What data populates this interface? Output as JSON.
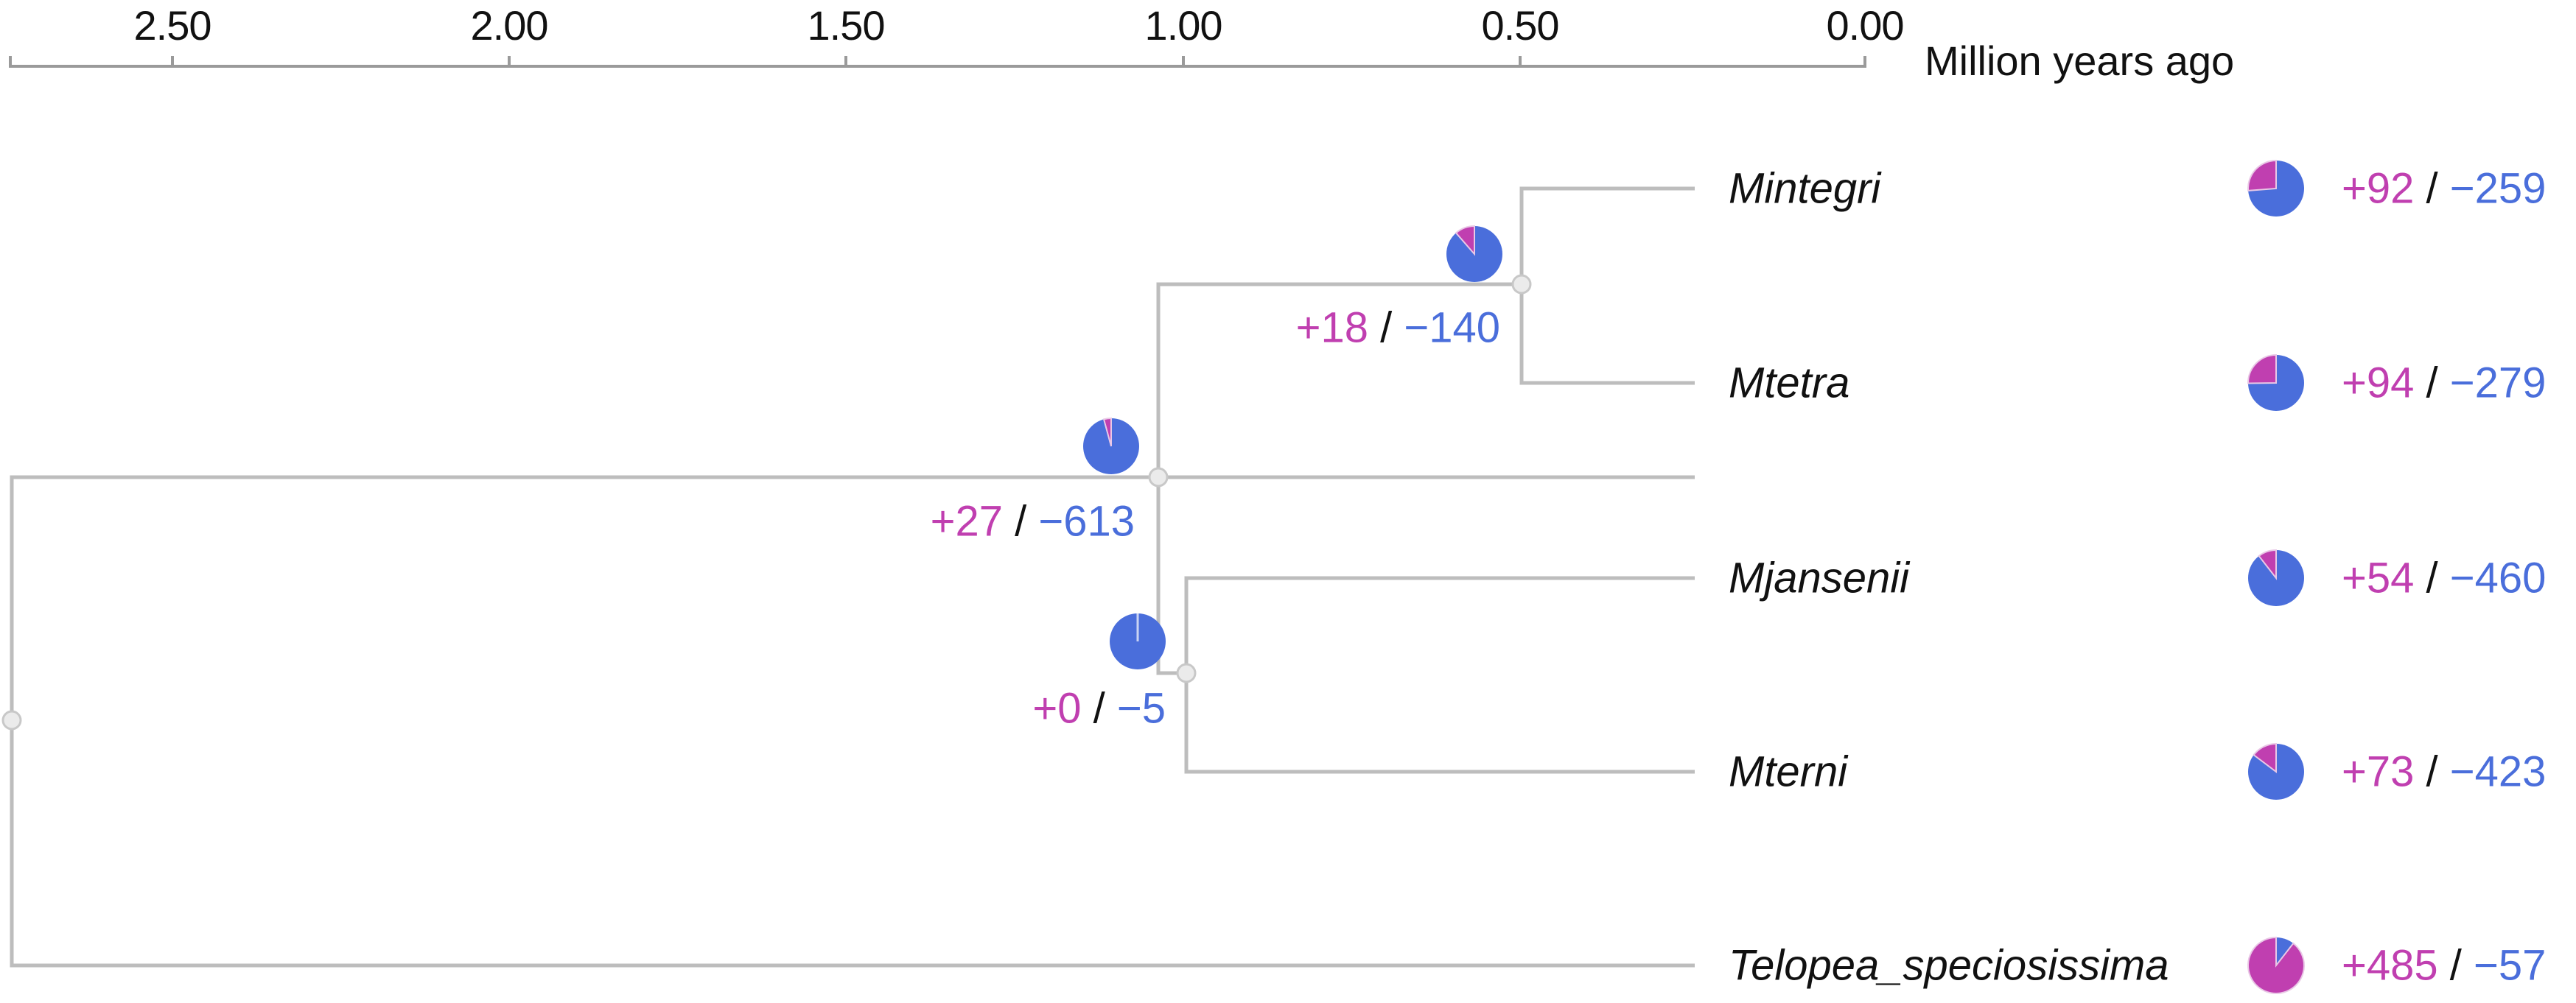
{
  "axis": {
    "title": "Million years ago",
    "ticks": [
      {
        "label": "2.50",
        "value": 2.5
      },
      {
        "label": "2.00",
        "value": 2.0
      },
      {
        "label": "1.50",
        "value": 1.5
      },
      {
        "label": "1.00",
        "value": 1.0
      },
      {
        "label": "0.50",
        "value": 0.5
      },
      {
        "label": "0.00",
        "value": 0.0
      }
    ]
  },
  "colors": {
    "gain": "#C03FB0",
    "loss": "#4A6EDB",
    "branch": "#BDBDBD",
    "node_fill": "#EBEBEB",
    "axis": "#999999"
  },
  "separator": "/",
  "taxa": [
    {
      "name": "Mintegri",
      "gain": "+92",
      "loss": "−259",
      "gain_n": 92,
      "loss_n": 259
    },
    {
      "name": "Mtetra",
      "gain": "+94",
      "loss": "−279",
      "gain_n": 94,
      "loss_n": 279
    },
    {
      "name": "Mjansenii",
      "gain": "+54",
      "loss": "−460",
      "gain_n": 54,
      "loss_n": 460
    },
    {
      "name": "Mterni",
      "gain": "+73",
      "loss": "−423",
      "gain_n": 73,
      "loss_n": 423
    },
    {
      "name": "Telopea_speciosissima",
      "gain": "+485",
      "loss": "−57",
      "gain_n": 485,
      "loss_n": 57
    }
  ],
  "internal_nodes": [
    {
      "id": "mintegri_mtetra",
      "gain": "+18",
      "loss": "−140",
      "gain_n": 18,
      "loss_n": 140
    },
    {
      "id": "ingroup",
      "gain": "+27",
      "loss": "−613",
      "gain_n": 27,
      "loss_n": 613
    },
    {
      "id": "mjansenii_mterni",
      "gain": "+0",
      "loss": "−5",
      "gain_n": 0,
      "loss_n": 5
    }
  ]
}
